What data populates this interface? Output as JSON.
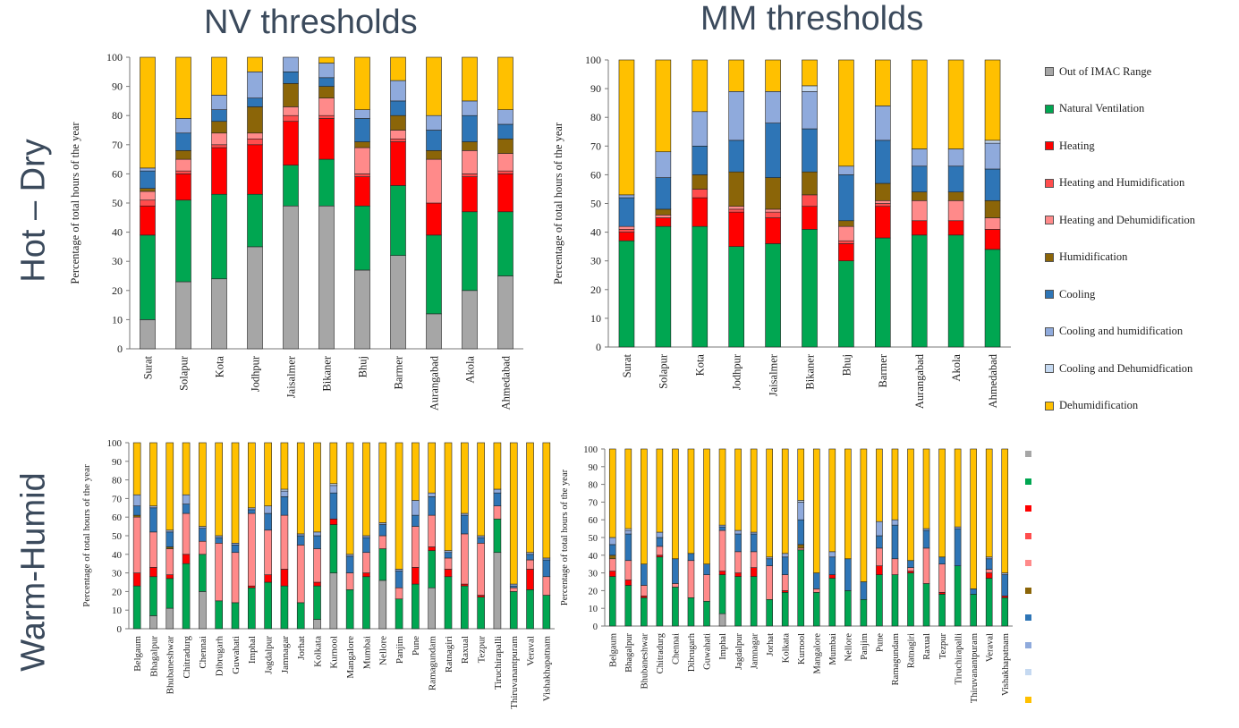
{
  "titles": {
    "nv": "NV thresholds",
    "mm": "MM thresholds"
  },
  "row_labels": {
    "hot_dry": "Hot – Dry",
    "warm_humid": "Warm-Humid"
  },
  "legend": {
    "items": [
      {
        "label": "Out of IMAC Range",
        "color": "#a6a6a6"
      },
      {
        "label": "Natural Ventilation",
        "color": "#00a651"
      },
      {
        "label": "Heating",
        "color": "#ff0000"
      },
      {
        "label": "Heating and Humidification",
        "color": "#ff4d4d"
      },
      {
        "label": "Heating and Dehumidification",
        "color": "#ff8a8a"
      },
      {
        "label": "Humidification",
        "color": "#8b6508"
      },
      {
        "label": "Cooling",
        "color": "#2e75b6"
      },
      {
        "label": "Cooling and humidification",
        "color": "#8faadc"
      },
      {
        "label": "Cooling and Dehumidfication",
        "color": "#c5d9f1"
      },
      {
        "label": "Dehumidification",
        "color": "#ffc000"
      }
    ]
  },
  "chart_data": [
    {
      "id": "nv-hot-dry",
      "type": "bar",
      "stacked": true,
      "ylabel": "Percentage of total hours of the year",
      "ylim": [
        0,
        100
      ],
      "yticks": [
        0,
        10,
        20,
        30,
        40,
        50,
        60,
        70,
        80,
        90,
        100
      ],
      "categories": [
        "Surat",
        "Solapur",
        "Kota",
        "Jodhpur",
        "Jaisalmer",
        "Bikaner",
        "Bhuj",
        "Barmer",
        "Aurangabad",
        "Akola",
        "Ahmedabad"
      ],
      "series": [
        {
          "name": "Out of IMAC Range",
          "values": [
            10,
            23,
            24,
            35,
            49,
            49,
            27,
            32,
            12,
            20,
            25
          ]
        },
        {
          "name": "Natural Ventilation",
          "values": [
            29,
            28,
            29,
            18,
            14,
            16,
            22,
            24,
            27,
            27,
            22
          ]
        },
        {
          "name": "Heating",
          "values": [
            10,
            9,
            16,
            17,
            15,
            14,
            10,
            15,
            11,
            12,
            13
          ]
        },
        {
          "name": "Heating and Humidification",
          "values": [
            2,
            1,
            1,
            2,
            2,
            1,
            1,
            1,
            0,
            1,
            1
          ]
        },
        {
          "name": "Heating and Dehumidification",
          "values": [
            3,
            4,
            4,
            2,
            3,
            6,
            9,
            3,
            15,
            8,
            6
          ]
        },
        {
          "name": "Humidification",
          "values": [
            1,
            3,
            4,
            9,
            8,
            4,
            2,
            5,
            3,
            3,
            5
          ]
        },
        {
          "name": "Cooling",
          "values": [
            6,
            6,
            4,
            3,
            4,
            3,
            8,
            5,
            7,
            9,
            5
          ]
        },
        {
          "name": "Cooling and humidification",
          "values": [
            1,
            5,
            5,
            9,
            5,
            5,
            3,
            7,
            5,
            5,
            5
          ]
        },
        {
          "name": "Cooling and Dehumidfication",
          "values": [
            0,
            0,
            0,
            0,
            0,
            0,
            0,
            0,
            0,
            0,
            0
          ]
        },
        {
          "name": "Dehumidification",
          "values": [
            38,
            21,
            13,
            5,
            0,
            2,
            18,
            8,
            20,
            15,
            18
          ]
        }
      ]
    },
    {
      "id": "mm-hot-dry",
      "type": "bar",
      "stacked": true,
      "ylabel": "Percentage of total hours of the year",
      "ylim": [
        0,
        100
      ],
      "yticks": [
        0,
        10,
        20,
        30,
        40,
        50,
        60,
        70,
        80,
        90,
        100
      ],
      "categories": [
        "Surat",
        "Solapur",
        "Kota",
        "Jodhpur",
        "Jaisalmer",
        "Bikaner",
        "Bhuj",
        "Barmer",
        "Aurangabad",
        "Akola",
        "Ahmedabad"
      ],
      "series": [
        {
          "name": "Out of IMAC Range",
          "values": [
            0,
            0,
            0,
            0,
            0,
            0,
            0,
            0,
            0,
            0,
            0
          ]
        },
        {
          "name": "Natural Ventilation",
          "values": [
            37,
            42,
            42,
            35,
            36,
            41,
            30,
            38,
            39,
            39,
            34
          ]
        },
        {
          "name": "Heating",
          "values": [
            3,
            3,
            10,
            12,
            9,
            8,
            6,
            11,
            5,
            5,
            7
          ]
        },
        {
          "name": "Heating and Humidification",
          "values": [
            1,
            0,
            3,
            1,
            2,
            4,
            1,
            1,
            0,
            0,
            0
          ]
        },
        {
          "name": "Heating and Dehumidification",
          "values": [
            1,
            1,
            0,
            1,
            1,
            0,
            5,
            1,
            7,
            7,
            4
          ]
        },
        {
          "name": "Humidification",
          "values": [
            0,
            2,
            5,
            12,
            11,
            8,
            2,
            6,
            3,
            3,
            6
          ]
        },
        {
          "name": "Cooling",
          "values": [
            10,
            11,
            10,
            11,
            19,
            15,
            16,
            15,
            9,
            9,
            11
          ]
        },
        {
          "name": "Cooling and humidification",
          "values": [
            1,
            9,
            12,
            17,
            11,
            13,
            3,
            12,
            6,
            6,
            9
          ]
        },
        {
          "name": "Cooling and Dehumidfication",
          "values": [
            0,
            0,
            0,
            0,
            0,
            2,
            0,
            0,
            0,
            0,
            1
          ]
        },
        {
          "name": "Dehumidification",
          "values": [
            47,
            32,
            18,
            11,
            11,
            9,
            37,
            16,
            31,
            31,
            28
          ]
        }
      ]
    },
    {
      "id": "nv-warm-humid",
      "type": "bar",
      "stacked": true,
      "ylabel": "Percentage of total hours of the year",
      "ylim": [
        0,
        100
      ],
      "yticks": [
        0,
        10,
        20,
        30,
        40,
        50,
        60,
        70,
        80,
        90,
        100
      ],
      "categories": [
        "Belgaum",
        "Bhagalpur",
        "Bhubaneshwar",
        "Chitradurg",
        "Chennai",
        "Dibrugarh",
        "Guwahati",
        "Imphal",
        "Jagdalpur",
        "Jamnagar",
        "Jorhat",
        "Kolkata",
        "Kurnool",
        "Mangalore",
        "Mumbai",
        "Nellore",
        "Panjim",
        "Pune",
        "Ramagundam",
        "Ratnagiri",
        "Raxual",
        "Tezpur",
        "Tiruchirapalli",
        "Thiruvanantpuram",
        "Veraval",
        "Vishakhapatnam"
      ],
      "series": [
        {
          "name": "Out of IMAC Range",
          "values": [
            0,
            7,
            11,
            0,
            20,
            0,
            0,
            0,
            0,
            0,
            0,
            5,
            30,
            0,
            0,
            26,
            0,
            0,
            22,
            0,
            0,
            0,
            41,
            0,
            0,
            0
          ]
        },
        {
          "name": "Natural Ventilation",
          "values": [
            23,
            21,
            16,
            35,
            20,
            15,
            14,
            22,
            25,
            23,
            14,
            18,
            26,
            21,
            28,
            17,
            16,
            24,
            20,
            28,
            23,
            17,
            18,
            20,
            21,
            18
          ]
        },
        {
          "name": "Heating",
          "values": [
            7,
            5,
            2,
            5,
            0,
            0,
            0,
            1,
            4,
            9,
            0,
            2,
            3,
            0,
            2,
            0,
            0,
            9,
            2,
            4,
            1,
            1,
            0,
            0,
            11,
            0
          ]
        },
        {
          "name": "Heating and Humidification",
          "values": [
            0,
            0,
            0,
            0,
            0,
            0,
            0,
            0,
            0,
            0,
            0,
            0,
            0,
            0,
            0,
            0,
            0,
            0,
            0,
            0,
            0,
            0,
            0,
            0,
            0,
            0
          ]
        },
        {
          "name": "Heating and Dehumidification",
          "values": [
            30,
            19,
            14,
            22,
            7,
            31,
            27,
            39,
            24,
            29,
            31,
            18,
            0,
            9,
            11,
            7,
            6,
            22,
            17,
            6,
            27,
            28,
            7,
            2,
            5,
            10
          ]
        },
        {
          "name": "Humidification",
          "values": [
            1,
            0,
            1,
            0,
            0,
            0,
            0,
            0,
            0,
            0,
            0,
            0,
            0,
            0,
            0,
            0,
            0,
            0,
            0,
            0,
            0,
            0,
            0,
            0,
            0,
            0
          ]
        },
        {
          "name": "Cooling",
          "values": [
            5,
            13,
            8,
            5,
            7,
            3,
            4,
            2,
            9,
            10,
            5,
            7,
            14,
            9,
            8,
            6,
            9,
            6,
            10,
            3,
            10,
            3,
            7,
            1,
            3,
            9
          ]
        },
        {
          "name": "Cooling and humidification",
          "values": [
            6,
            1,
            1,
            5,
            1,
            1,
            1,
            1,
            4,
            3,
            1,
            2,
            4,
            1,
            1,
            1,
            1,
            8,
            2,
            1,
            1,
            1,
            2,
            1,
            1,
            1
          ]
        },
        {
          "name": "Cooling and Dehumidfication",
          "values": [
            0,
            0,
            0,
            0,
            0,
            0,
            0,
            0,
            0,
            1,
            0,
            0,
            1,
            0,
            0,
            0,
            0,
            0,
            0,
            0,
            0,
            0,
            0,
            0,
            0,
            0
          ]
        },
        {
          "name": "Dehumidification",
          "values": [
            28,
            34,
            47,
            28,
            45,
            50,
            54,
            35,
            34,
            25,
            49,
            48,
            22,
            60,
            50,
            43,
            68,
            31,
            27,
            58,
            38,
            50,
            25,
            76,
            59,
            62
          ]
        }
      ]
    },
    {
      "id": "mm-warm-humid",
      "type": "bar",
      "stacked": true,
      "ylabel": "Percentage of total hours of the year",
      "ylim": [
        0,
        100
      ],
      "yticks": [
        0,
        10,
        20,
        30,
        40,
        50,
        60,
        70,
        80,
        90,
        100
      ],
      "categories": [
        "Belgaum",
        "Bhagalpur",
        "Bhubaneshwar",
        "Chitradurg",
        "Chennai",
        "Dibrugarh",
        "Guwahati",
        "Imphal",
        "Jagdalpur",
        "Jamnagar",
        "Jorhat",
        "Kolkata",
        "Kurnool",
        "Mangalore",
        "Mumbai",
        "Nellore",
        "Panjim",
        "Pune",
        "Ramagundam",
        "Ratnagiri",
        "Raxual",
        "Tezpur",
        "Tiruchirapalli",
        "Thiruvanantpuram",
        "Veraval",
        "Vishakhapatnam"
      ],
      "series": [
        {
          "name": "Out of IMAC Range",
          "values": [
            0,
            0,
            0,
            0,
            0,
            0,
            0,
            7,
            0,
            0,
            0,
            0,
            0,
            0,
            0,
            0,
            0,
            0,
            0,
            0,
            0,
            0,
            0,
            0,
            0,
            0
          ]
        },
        {
          "name": "Natural Ventilation",
          "values": [
            28,
            23,
            16,
            39,
            22,
            16,
            14,
            22,
            28,
            28,
            15,
            19,
            43,
            19,
            27,
            20,
            15,
            29,
            29,
            30,
            24,
            18,
            34,
            18,
            27,
            16
          ]
        },
        {
          "name": "Heating",
          "values": [
            3,
            3,
            1,
            1,
            0,
            0,
            0,
            2,
            2,
            5,
            0,
            1,
            0,
            0,
            2,
            0,
            0,
            5,
            0,
            1,
            0,
            1,
            0,
            0,
            3,
            1
          ]
        },
        {
          "name": "Heating and Humidification",
          "values": [
            0,
            0,
            0,
            0,
            0,
            0,
            0,
            0,
            0,
            0,
            0,
            0,
            0,
            0,
            0,
            0,
            0,
            0,
            0,
            0,
            0,
            0,
            0,
            0,
            0,
            0
          ]
        },
        {
          "name": "Heating and Dehumidification",
          "values": [
            7,
            11,
            6,
            5,
            2,
            21,
            15,
            23,
            12,
            9,
            19,
            9,
            1,
            2,
            0,
            0,
            0,
            10,
            9,
            2,
            20,
            16,
            0,
            0,
            2,
            0
          ]
        },
        {
          "name": "Humidification",
          "values": [
            2,
            0,
            0,
            0,
            0,
            0,
            0,
            0,
            0,
            0,
            0,
            0,
            2,
            0,
            0,
            0,
            0,
            0,
            0,
            0,
            0,
            0,
            0,
            0,
            0,
            0
          ]
        },
        {
          "name": "Cooling",
          "values": [
            6,
            15,
            12,
            5,
            14,
            4,
            6,
            2,
            10,
            10,
            4,
            10,
            14,
            9,
            10,
            18,
            10,
            7,
            19,
            4,
            10,
            4,
            21,
            3,
            6,
            12
          ]
        },
        {
          "name": "Cooling and humidification",
          "values": [
            4,
            2,
            0,
            3,
            0,
            0,
            0,
            1,
            2,
            1,
            1,
            2,
            10,
            0,
            3,
            0,
            0,
            8,
            3,
            0,
            1,
            0,
            1,
            0,
            1,
            1
          ]
        },
        {
          "name": "Cooling and Dehumidfication",
          "values": [
            0,
            1,
            0,
            0,
            0,
            0,
            0,
            0,
            0,
            0,
            0,
            0,
            1,
            0,
            0,
            0,
            0,
            0,
            0,
            0,
            0,
            0,
            0,
            0,
            0,
            0
          ]
        },
        {
          "name": "Dehumidification",
          "values": [
            50,
            45,
            65,
            47,
            62,
            59,
            65,
            43,
            46,
            47,
            61,
            59,
            29,
            70,
            58,
            62,
            75,
            41,
            40,
            63,
            45,
            61,
            44,
            79,
            61,
            70
          ]
        }
      ]
    }
  ]
}
